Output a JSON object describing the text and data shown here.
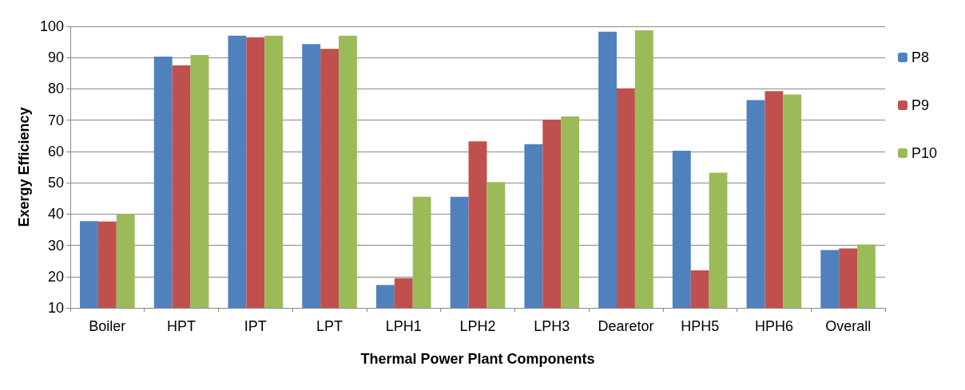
{
  "chart_data": {
    "type": "bar",
    "xlabel": "Thermal Power Plant Components",
    "ylabel": "Exergy Efficiency",
    "categories": [
      "Boiler",
      "HPT",
      "IPT",
      "LPT",
      "LPH1",
      "LPH2",
      "LPH3",
      "Dearetor",
      "HPH5",
      "HPH6",
      "Overall"
    ],
    "series": [
      {
        "name": "P8",
        "color": "#4f81bd",
        "values": [
          37.7,
          90.3,
          97,
          94.3,
          17.3,
          45.5,
          62.3,
          98.3,
          60.2,
          76.4,
          28.5
        ]
      },
      {
        "name": "P9",
        "color": "#c0504d",
        "values": [
          37.6,
          87.5,
          96.5,
          92.8,
          19.5,
          63.2,
          70.2,
          80.2,
          22,
          79.3,
          29
        ]
      },
      {
        "name": "P10",
        "color": "#9bbb59",
        "values": [
          40,
          90.8,
          97,
          97,
          45.5,
          50.2,
          71.2,
          98.7,
          53.2,
          78.2,
          30.3
        ]
      }
    ],
    "ylim": [
      10,
      100
    ],
    "yticks": [
      10,
      20,
      30,
      40,
      50,
      60,
      70,
      80,
      90,
      100
    ],
    "grid": "y",
    "legend": "right"
  }
}
